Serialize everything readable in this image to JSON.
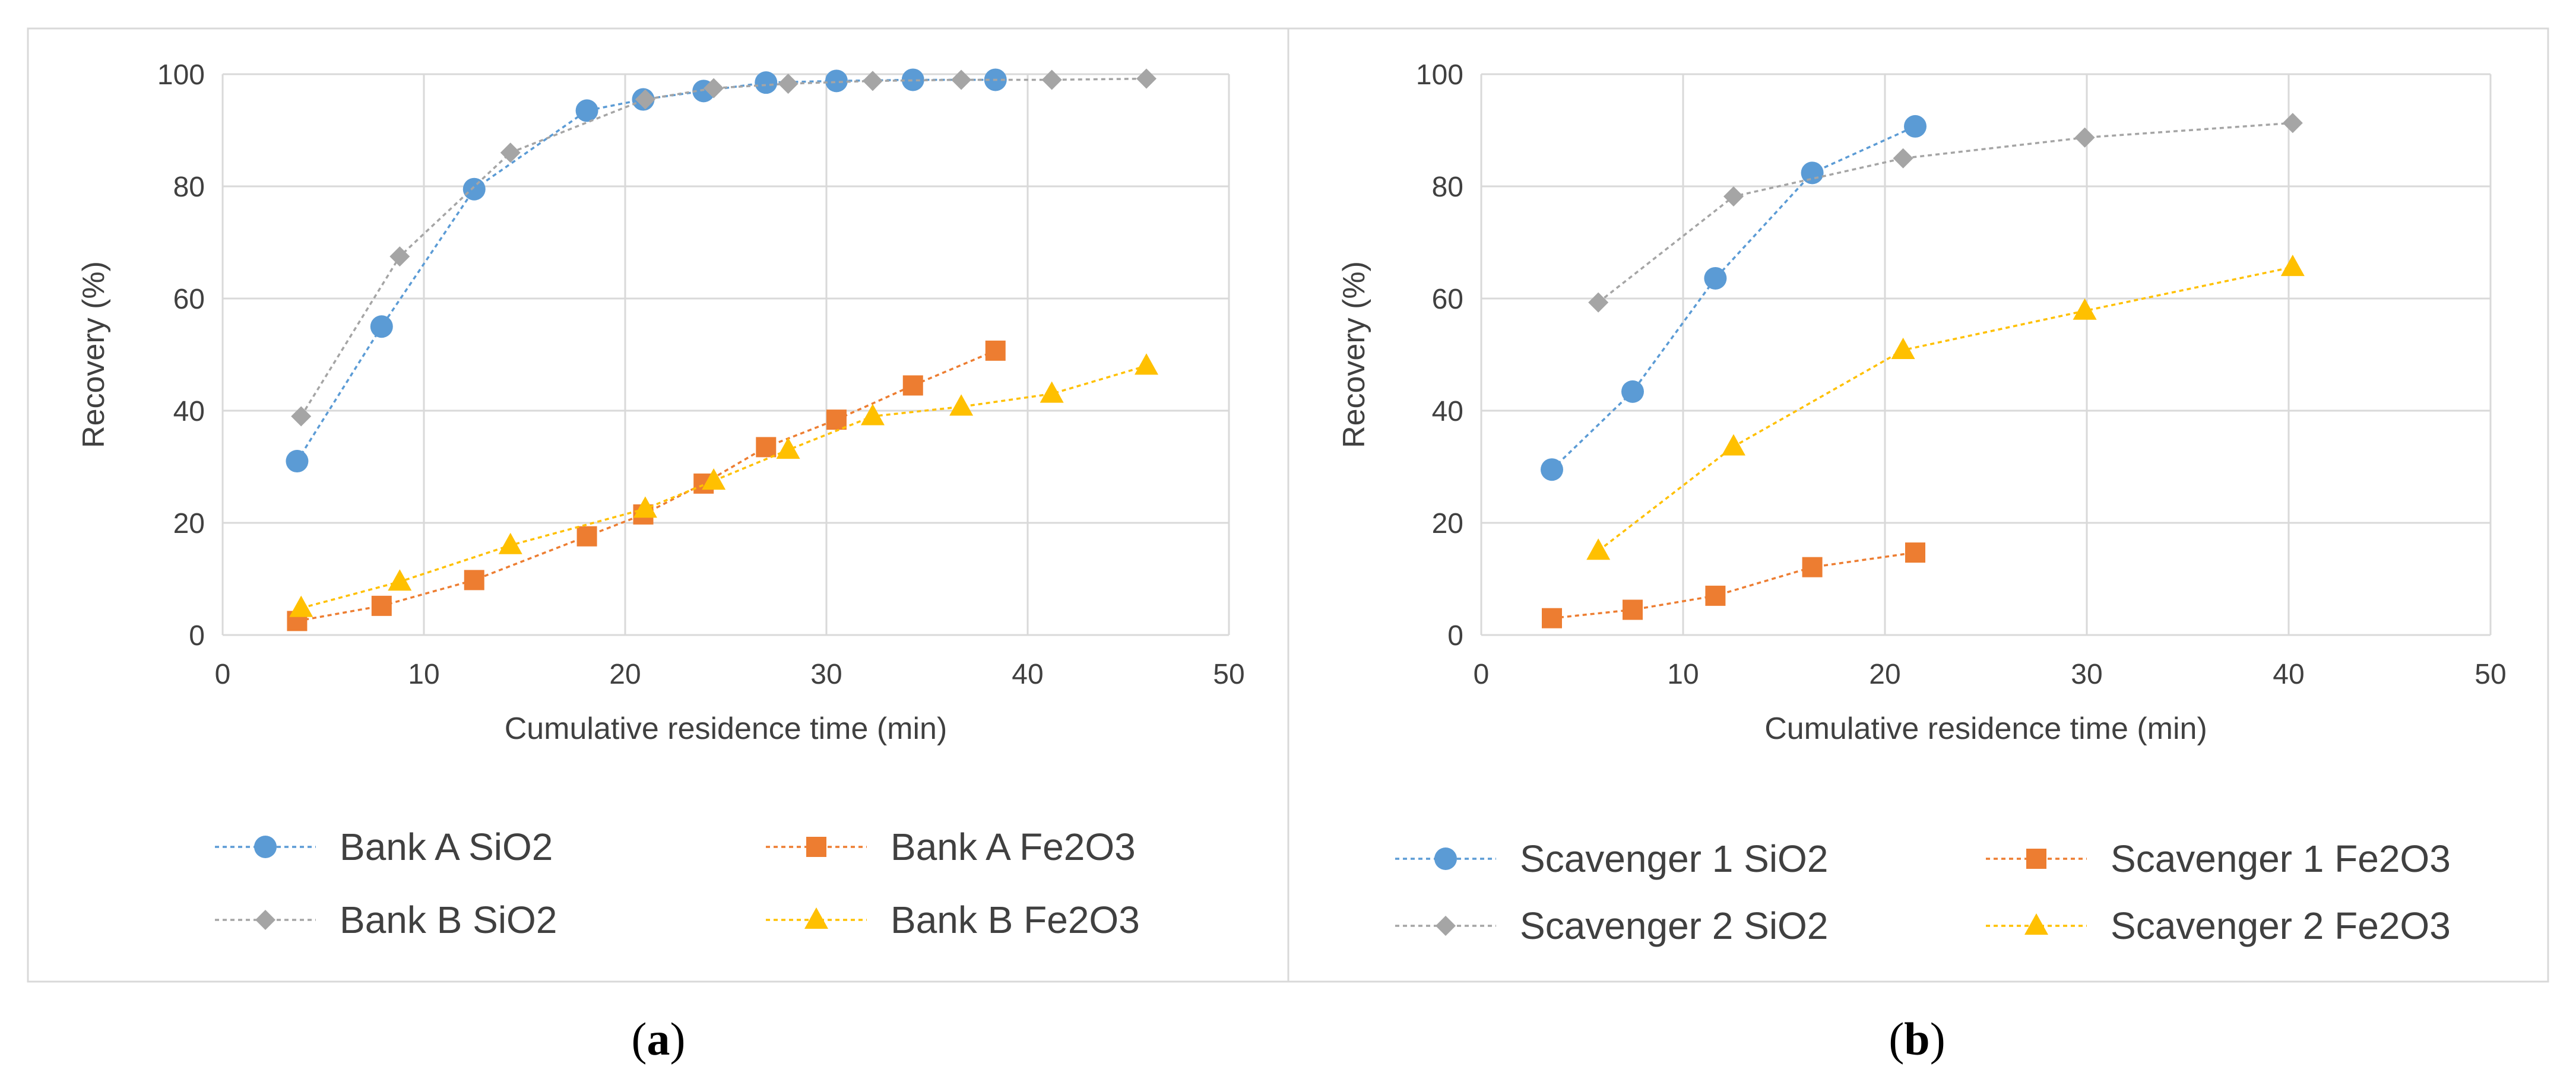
{
  "chart_data": [
    {
      "type": "line",
      "panel_label": "a",
      "xlabel": "Cumulative residence time (min)",
      "ylabel": "Recovery (%)",
      "xlim": [
        0,
        50
      ],
      "ylim": [
        0,
        100
      ],
      "xticks": [
        0,
        10,
        20,
        30,
        40,
        50
      ],
      "yticks": [
        0,
        20,
        40,
        60,
        80,
        100
      ],
      "grid": true,
      "legend_position": "bottom",
      "series": [
        {
          "name": "Bank A SiO2",
          "color": "#5b9bd5",
          "marker": "circle",
          "x": [
            3.7,
            7.9,
            12.5,
            18.1,
            20.9,
            23.9,
            27.0,
            30.5,
            34.3,
            38.4
          ],
          "y": [
            31,
            55,
            79.5,
            93.5,
            95.5,
            97,
            98.5,
            98.8,
            99,
            99
          ]
        },
        {
          "name": "Bank A Fe2O3",
          "color": "#ed7d31",
          "marker": "square",
          "x": [
            3.7,
            7.9,
            12.5,
            18.1,
            20.9,
            23.9,
            27.0,
            30.5,
            34.3,
            38.4
          ],
          "y": [
            2.5,
            5.2,
            9.8,
            17.6,
            21.5,
            27,
            33.5,
            38.4,
            44.5,
            50.7
          ]
        },
        {
          "name": "Bank B SiO2",
          "color": "#a5a5a5",
          "marker": "diamond",
          "x": [
            3.9,
            8.8,
            14.3,
            21.0,
            24.4,
            28.1,
            32.3,
            36.7,
            41.2,
            45.9
          ],
          "y": [
            39,
            67.5,
            86,
            95.5,
            97.5,
            98.3,
            98.8,
            99,
            99,
            99.2
          ]
        },
        {
          "name": "Bank B Fe2O3",
          "color": "#ffc000",
          "marker": "triangle",
          "x": [
            3.9,
            8.8,
            14.3,
            21.0,
            24.4,
            28.1,
            32.3,
            36.7,
            41.2,
            45.9
          ],
          "y": [
            4.8,
            9.5,
            16,
            22.5,
            27.5,
            33,
            39,
            40.7,
            43,
            48
          ]
        }
      ]
    },
    {
      "type": "line",
      "panel_label": "b",
      "xlabel": "Cumulative residence time (min)",
      "ylabel": "Recovery (%)",
      "xlim": [
        0,
        50
      ],
      "ylim": [
        0,
        100
      ],
      "xticks": [
        0,
        10,
        20,
        30,
        40,
        50
      ],
      "yticks": [
        0,
        20,
        40,
        60,
        80,
        100
      ],
      "grid": true,
      "legend_position": "bottom",
      "series": [
        {
          "name": "Scavenger 1 SiO2",
          "color": "#5b9bd5",
          "marker": "circle",
          "x": [
            3.5,
            7.5,
            11.6,
            16.4,
            21.5
          ],
          "y": [
            29.5,
            43.4,
            63.6,
            82.4,
            90.7
          ]
        },
        {
          "name": "Scavenger 1 Fe2O3",
          "color": "#ed7d31",
          "marker": "square",
          "x": [
            3.5,
            7.5,
            11.6,
            16.4,
            21.5
          ],
          "y": [
            3,
            4.5,
            7,
            12.1,
            14.7
          ]
        },
        {
          "name": "Scavenger 2 SiO2",
          "color": "#a5a5a5",
          "marker": "diamond",
          "x": [
            5.8,
            12.5,
            20.9,
            29.9,
            40.2
          ],
          "y": [
            59.3,
            78.2,
            85,
            88.7,
            91.3
          ]
        },
        {
          "name": "Scavenger 2 Fe2O3",
          "color": "#ffc000",
          "marker": "triangle",
          "x": [
            5.8,
            12.5,
            20.9,
            29.9,
            40.2
          ],
          "y": [
            15,
            33.6,
            50.8,
            57.8,
            65.6
          ]
        }
      ]
    }
  ]
}
